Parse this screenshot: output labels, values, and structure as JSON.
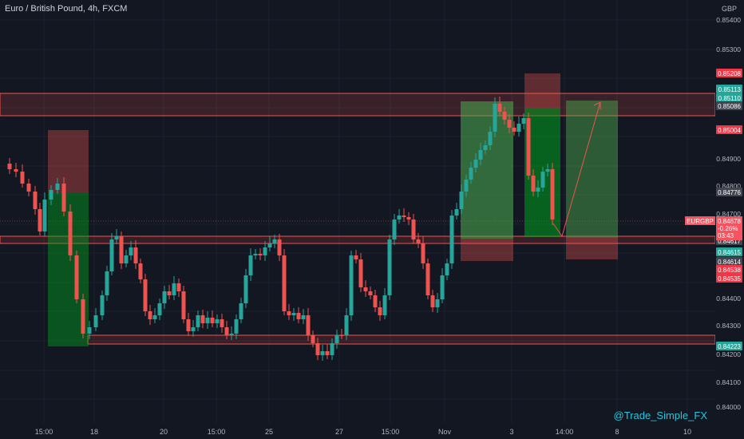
{
  "header": {
    "symbol_title": "Euro / British Pound, 4h, FXCM"
  },
  "price_axis": {
    "unit": "GBP",
    "ticks": [
      "0.85400",
      "0.85300",
      "0.84900",
      "0.84800",
      "0.84700",
      "0.84400",
      "0.84300",
      "0.84200",
      "0.84100",
      "0.84000"
    ],
    "labels": [
      {
        "text": "0.85208",
        "color": "#f23645"
      },
      {
        "text": "0.85113",
        "color": "#26a69a"
      },
      {
        "text": "0.85110",
        "color": "#26a69a"
      },
      {
        "text": "0.85086",
        "color": "#434651"
      },
      {
        "text": "0.85004",
        "color": "#f23645"
      },
      {
        "text": "0.84776",
        "color": "#434651"
      },
      {
        "text": "0.84617",
        "color": "#434651"
      },
      {
        "text": "0.84615",
        "color": "#26a69a"
      },
      {
        "text": "0.84614",
        "color": "#434651"
      },
      {
        "text": "0.84538",
        "color": "#f23645"
      },
      {
        "text": "0.84535",
        "color": "#f23645"
      },
      {
        "text": "0.84223",
        "color": "#26a69a"
      }
    ],
    "current": {
      "symbol": "EURGBP",
      "price": "0.84678",
      "change": "-0.26%",
      "timer": "03:43",
      "color": "#f7525f"
    }
  },
  "time_axis": {
    "ticks": [
      "15:00",
      "18",
      "20",
      "15:00",
      "25",
      "27",
      "15:00",
      "Nov",
      "3",
      "14:00",
      "8",
      "10"
    ]
  },
  "watermark": "@Trade_Simple_FX",
  "colors": {
    "background": "#131722",
    "up": "#26a69a",
    "down": "#ef5350",
    "text": "#b2b5be"
  }
}
